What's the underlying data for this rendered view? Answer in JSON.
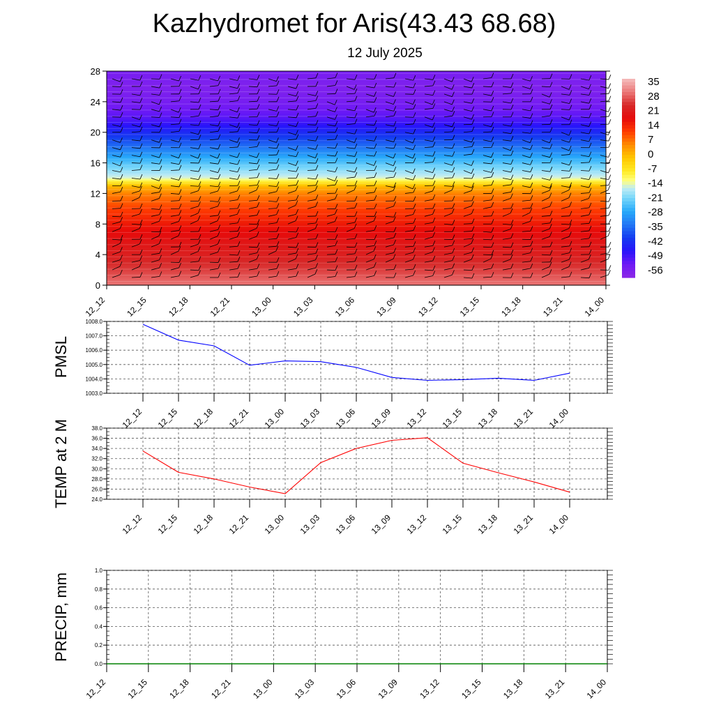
{
  "header": {
    "title": "Kazhydromet for Aris(43.43 68.68)",
    "subtitle": "12 July 2025"
  },
  "chart_data": [
    {
      "type": "heatmap",
      "title": "",
      "xlabel": "",
      "ylabel": "",
      "x_tick_labels": [
        "12_12",
        "12_15",
        "12_18",
        "12_21",
        "13_00",
        "13_03",
        "13_06",
        "13_09",
        "13_12",
        "13_15",
        "13_18",
        "13_21",
        "14_00"
      ],
      "y_tick_labels": [
        "0",
        "4",
        "8",
        "12",
        "16",
        "20",
        "24",
        "28"
      ],
      "ylim": [
        0,
        28
      ],
      "colorbar": {
        "labels": [
          "35",
          "28",
          "21",
          "14",
          "7",
          "0",
          "-7",
          "-14",
          "-21",
          "-28",
          "-35",
          "-42",
          "-49",
          "-56"
        ],
        "range": [
          -63,
          42
        ]
      },
      "temperature_profile": {
        "levels": [
          0,
          2,
          4,
          6,
          8,
          10,
          12,
          13,
          14,
          16,
          18,
          20,
          22,
          24,
          26,
          28
        ],
        "values": [
          35,
          30,
          26,
          23,
          19,
          14,
          8,
          2,
          -14,
          -24,
          -35,
          -45,
          -54,
          -58,
          -60,
          -58
        ]
      },
      "wind_barbs": true,
      "grid": false
    },
    {
      "type": "line",
      "title": "",
      "ylabel": "PMSL",
      "categories": [
        "12_12",
        "12_15",
        "12_18",
        "12_21",
        "13_00",
        "13_03",
        "13_06",
        "13_09",
        "13_12",
        "13_15",
        "13_18",
        "13_21",
        "14_00"
      ],
      "series": [
        {
          "color": "#0000ff",
          "values": [
            1007.8,
            1006.7,
            1006.3,
            1004.95,
            1005.25,
            1005.2,
            1004.8,
            1004.1,
            1003.9,
            1003.95,
            1004.05,
            1003.9,
            1004.4
          ]
        }
      ],
      "ylim": [
        1003.0,
        1008.0
      ],
      "y_tick_labels": [
        "1003.0",
        "1004.0",
        "1005.0",
        "1006.0",
        "1007.0",
        "1008.0"
      ],
      "grid": true
    },
    {
      "type": "line",
      "title": "",
      "ylabel": "TEMP at 2 M",
      "categories": [
        "12_12",
        "12_15",
        "12_18",
        "12_21",
        "13_00",
        "13_03",
        "13_06",
        "13_09",
        "13_12",
        "13_15",
        "13_18",
        "13_21",
        "14_00"
      ],
      "series": [
        {
          "color": "#ff0000",
          "values": [
            33.5,
            29.3,
            28.0,
            26.4,
            25.1,
            31.2,
            34.0,
            35.6,
            36.1,
            31.1,
            29.2,
            27.4,
            25.4
          ]
        }
      ],
      "ylim": [
        24.0,
        38.0
      ],
      "y_tick_labels": [
        "24.0",
        "26.0",
        "28.0",
        "30.0",
        "32.0",
        "34.0",
        "36.0",
        "38.0"
      ],
      "grid": true
    },
    {
      "type": "line",
      "title": "",
      "ylabel": "PRECIP, mm",
      "categories": [
        "12_12",
        "12_15",
        "12_18",
        "12_21",
        "13_00",
        "13_03",
        "13_06",
        "13_09",
        "13_12",
        "13_15",
        "13_18",
        "13_21",
        "14_00"
      ],
      "series": [
        {
          "color": "#008000",
          "values": [
            0,
            0,
            0,
            0,
            0,
            0,
            0,
            0,
            0,
            0,
            0,
            0,
            0
          ]
        }
      ],
      "ylim": [
        0.0,
        1.0
      ],
      "y_tick_labels": [
        "0.0",
        "0.2",
        "0.4",
        "0.6",
        "0.8",
        "1.0"
      ],
      "grid": true
    }
  ]
}
